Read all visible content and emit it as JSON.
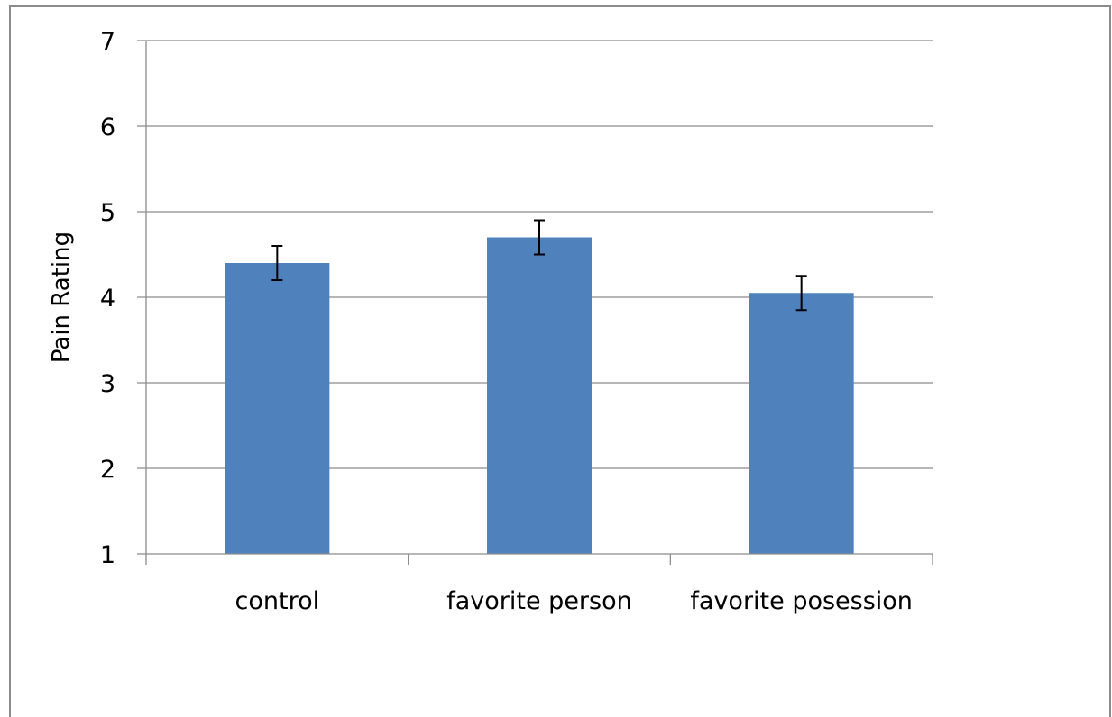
{
  "chart_data": {
    "type": "bar",
    "title": "",
    "xlabel": "",
    "ylabel": "Pain Rating",
    "categories": [
      "control",
      "favorite person",
      "favorite posession"
    ],
    "values": [
      4.4,
      4.7,
      4.05
    ],
    "error": [
      0.2,
      0.2,
      0.2
    ],
    "ylim": [
      1,
      7
    ],
    "yticks": [
      "1",
      "2",
      "3",
      "4",
      "5",
      "6",
      "7"
    ],
    "grid": true,
    "legend": "none",
    "colors": {
      "bar": "#4f81bd",
      "grid": "#8c8c8c",
      "axis": "#8c8c8c",
      "error_bar": "#000000"
    }
  }
}
